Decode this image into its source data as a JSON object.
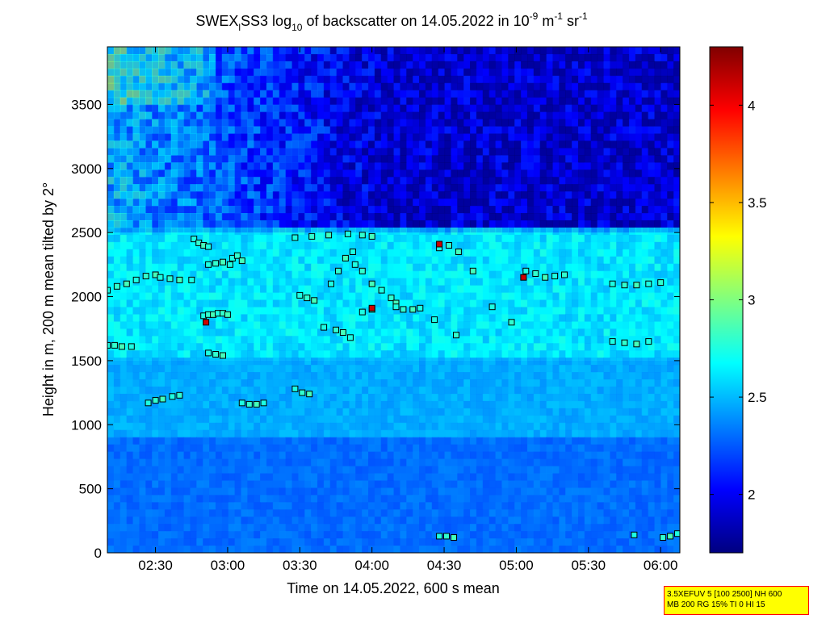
{
  "chart_data": {
    "type": "heatmap",
    "title": {
      "instrument": "SWEX",
      "instrument_sub": "l",
      "instrument_rest": "SS3 log",
      "log_sub": "10",
      "middle": " of backscatter on 14.05.2022 in 10",
      "exp1": "-9",
      "unit_m": " m",
      "exp2": "-1",
      "unit_sr": " sr",
      "exp3": "-1"
    },
    "xlabel": "Time on 14.05.2022, 600 s mean",
    "ylabel": "Height in m, 200 m mean tilted by 2°",
    "x_ticks": [
      "02:30",
      "03:00",
      "03:30",
      "04:00",
      "04:30",
      "05:00",
      "05:30",
      "06:00"
    ],
    "x_tick_minutes": [
      150,
      180,
      210,
      240,
      270,
      300,
      330,
      360
    ],
    "xlim_minutes": [
      130,
      368
    ],
    "y_ticks": [
      0,
      500,
      1000,
      1500,
      2000,
      2500,
      3000,
      3500
    ],
    "ylim": [
      0,
      3950
    ],
    "colorbar": {
      "ticks": [
        2,
        2.5,
        3,
        3.5,
        4
      ],
      "tick_labels": [
        "2",
        "2.5",
        "3",
        "3.5",
        "4"
      ],
      "range": [
        1.7,
        4.3
      ]
    },
    "colormap": "jet",
    "marker_color": "#000000",
    "layers": [
      {
        "z_max": 900,
        "value": 2.3
      },
      {
        "z_max": 1500,
        "value": 2.5
      },
      {
        "z_max": 2500,
        "value": 2.65
      },
      {
        "z_max": 3950,
        "value": 2.0
      }
    ],
    "layer_markers": [
      {
        "t": [
          130,
          134,
          138,
          142,
          146,
          150,
          152,
          156,
          160,
          165
        ],
        "z": [
          2050,
          2080,
          2100,
          2130,
          2160,
          2170,
          2150,
          2140,
          2130,
          2130
        ]
      },
      {
        "t": [
          166,
          168,
          170,
          172
        ],
        "z": [
          2450,
          2420,
          2400,
          2390
        ]
      },
      {
        "t": [
          170,
          172,
          174,
          176,
          178,
          180
        ],
        "z": [
          1850,
          1860,
          1860,
          1870,
          1870,
          1860
        ]
      },
      {
        "t": [
          172,
          175,
          178,
          181
        ],
        "z": [
          2250,
          2260,
          2270,
          2250
        ]
      },
      {
        "t": [
          172,
          175,
          178
        ],
        "z": [
          1560,
          1550,
          1540
        ]
      },
      {
        "t": [
          182,
          184,
          186
        ],
        "z": [
          2300,
          2320,
          2280
        ]
      },
      {
        "t": [
          208,
          215,
          222,
          230,
          236,
          240
        ],
        "z": [
          2460,
          2470,
          2480,
          2490,
          2480,
          2470
        ]
      },
      {
        "t": [
          223,
          226,
          229,
          232
        ],
        "z": [
          2100,
          2200,
          2300,
          2350
        ]
      },
      {
        "t": [
          233,
          236,
          240,
          244,
          248,
          250
        ],
        "z": [
          2250,
          2200,
          2100,
          2050,
          1990,
          1950
        ]
      },
      {
        "t": [
          250,
          253,
          257,
          260
        ],
        "z": [
          1920,
          1900,
          1900,
          1910
        ]
      },
      {
        "t": [
          210,
          213,
          216
        ],
        "z": [
          2010,
          1990,
          1970
        ]
      },
      {
        "t": [
          220,
          225,
          228,
          231
        ],
        "z": [
          1760,
          1740,
          1720,
          1680
        ]
      },
      {
        "t": [
          208,
          211,
          214
        ],
        "z": [
          1280,
          1250,
          1240
        ]
      },
      {
        "t": [
          236,
          240
        ],
        "z": [
          1880,
          1900
        ]
      },
      {
        "t": [
          268,
          272,
          276
        ],
        "z": [
          2380,
          2400,
          2350
        ]
      },
      {
        "t": [
          304,
          308,
          312,
          316,
          320
        ],
        "z": [
          2200,
          2180,
          2150,
          2160,
          2170
        ]
      },
      {
        "t": [
          340,
          345,
          350,
          355,
          360
        ],
        "z": [
          2100,
          2090,
          2090,
          2100,
          2110
        ]
      },
      {
        "t": [
          340,
          345,
          350,
          355
        ],
        "z": [
          1650,
          1640,
          1630,
          1650
        ]
      },
      {
        "t": [
          130,
          133,
          136,
          140
        ],
        "z": [
          1620,
          1620,
          1610,
          1610
        ]
      },
      {
        "t": [
          186,
          189,
          192,
          195
        ],
        "z": [
          1170,
          1160,
          1160,
          1170
        ]
      },
      {
        "t": [
          268,
          271,
          274
        ],
        "z": [
          130,
          130,
          120
        ]
      },
      {
        "t": [
          349,
          361,
          364,
          367
        ],
        "z": [
          140,
          120,
          130,
          150
        ]
      },
      {
        "t": [
          147,
          150,
          153,
          157,
          160
        ],
        "z": [
          1170,
          1190,
          1200,
          1220,
          1230
        ]
      },
      {
        "t": [
          266,
          275,
          282,
          290,
          298
        ],
        "z": [
          1820,
          1700,
          2200,
          1920,
          1800
        ]
      }
    ],
    "red_markers": [
      {
        "t": 171,
        "z": 1800
      },
      {
        "t": 240,
        "z": 1910
      },
      {
        "t": 268,
        "z": 2410
      },
      {
        "t": 303,
        "z": 2150
      }
    ]
  },
  "info_box": {
    "line1": "3.5XEFUV 5 [100 2500] NH 600",
    "line2": "MB 200 RG 15% TI 0 HI 15",
    "background": "#ffff00",
    "border": "#ff0000"
  }
}
